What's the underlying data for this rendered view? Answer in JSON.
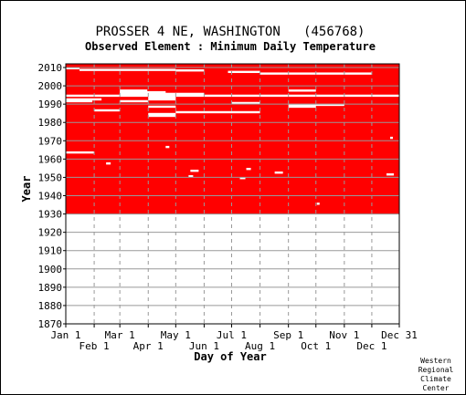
{
  "chart_data": {
    "type": "heatmap",
    "title": "PROSSER 4 NE, WASHINGTON   (456768)",
    "subtitle": "Observed Element : Minimum Daily Temperature",
    "xlabel": "Day of Year",
    "ylabel": "Year",
    "ylim": [
      1870,
      2012
    ],
    "y_ticks": [
      1870,
      1880,
      1890,
      1900,
      1910,
      1920,
      1930,
      1940,
      1950,
      1960,
      1970,
      1980,
      1990,
      2000,
      2010
    ],
    "x_ticks_top_row": [
      {
        "label": "Jan 1",
        "day": 1
      },
      {
        "label": "Mar 1",
        "day": 60
      },
      {
        "label": "May 1",
        "day": 121
      },
      {
        "label": "Jul 1",
        "day": 182
      },
      {
        "label": "Sep 1",
        "day": 244
      },
      {
        "label": "Nov 1",
        "day": 305
      },
      {
        "label": "Dec 31",
        "day": 365
      }
    ],
    "x_ticks_bottom_row": [
      {
        "label": "Feb 1",
        "day": 32
      },
      {
        "label": "Apr 1",
        "day": 91
      },
      {
        "label": "Jun 1",
        "day": 152
      },
      {
        "label": "Aug 1",
        "day": 213
      },
      {
        "label": "Oct 1",
        "day": 274
      },
      {
        "label": "Dec 1",
        "day": 335
      }
    ],
    "data_range_years": [
      1930,
      2012
    ],
    "data_color": "#ff0000",
    "grid_color": "#999999",
    "missing_periods": [
      {
        "year": 2009.6,
        "day_start": 1,
        "day_end": 16
      },
      {
        "year": 2008.7,
        "day_start": 16,
        "day_end": 121
      },
      {
        "year": 2008.4,
        "day_start": 121,
        "day_end": 152
      },
      {
        "year": 2007.6,
        "day_start": 178,
        "day_end": 213
      },
      {
        "year": 2006.7,
        "day_start": 213,
        "day_end": 335
      },
      {
        "year": 1997.4,
        "day_start": 60,
        "day_end": 90
      },
      {
        "year": 1996.5,
        "day_start": 60,
        "day_end": 110
      },
      {
        "year": 1997.4,
        "day_start": 244,
        "day_end": 274
      },
      {
        "year": 1995.6,
        "day_start": 60,
        "day_end": 152
      },
      {
        "year": 1994.6,
        "day_start": 1,
        "day_end": 365
      },
      {
        "year": 1993.6,
        "day_start": 91,
        "day_end": 121
      },
      {
        "year": 1992.6,
        "day_start": 1,
        "day_end": 40
      },
      {
        "year": 1992.6,
        "day_start": 91,
        "day_end": 121
      },
      {
        "year": 1991.6,
        "day_start": 1,
        "day_end": 30
      },
      {
        "year": 1991.6,
        "day_start": 60,
        "day_end": 91
      },
      {
        "year": 1990.6,
        "day_start": 182,
        "day_end": 213
      },
      {
        "year": 1989.6,
        "day_start": 244,
        "day_end": 305
      },
      {
        "year": 1988.6,
        "day_start": 91,
        "day_end": 121
      },
      {
        "year": 1988.6,
        "day_start": 244,
        "day_end": 274
      },
      {
        "year": 1986.6,
        "day_start": 32,
        "day_end": 60
      },
      {
        "year": 1985.6,
        "day_start": 121,
        "day_end": 213
      },
      {
        "year": 1984.6,
        "day_start": 91,
        "day_end": 121
      },
      {
        "year": 1983.6,
        "day_start": 91,
        "day_end": 121
      },
      {
        "year": 1963.6,
        "day_start": 1,
        "day_end": 32
      },
      {
        "year": 1957.6,
        "day_start": 45,
        "day_end": 50
      },
      {
        "year": 1954.6,
        "day_start": 198,
        "day_end": 203
      },
      {
        "year": 1953.6,
        "day_start": 137,
        "day_end": 146
      },
      {
        "year": 1952.6,
        "day_start": 229,
        "day_end": 238
      },
      {
        "year": 1951.6,
        "day_start": 351,
        "day_end": 359
      },
      {
        "year": 1950.6,
        "day_start": 135,
        "day_end": 140
      },
      {
        "year": 1949.6,
        "day_start": 191,
        "day_end": 197
      },
      {
        "year": 1966.6,
        "day_start": 110,
        "day_end": 114
      },
      {
        "year": 1971.6,
        "day_start": 355,
        "day_end": 358
      },
      {
        "year": 1935.6,
        "day_start": 275,
        "day_end": 278
      }
    ]
  },
  "credit": [
    "Western",
    "Regional",
    "Climate",
    "Center"
  ]
}
